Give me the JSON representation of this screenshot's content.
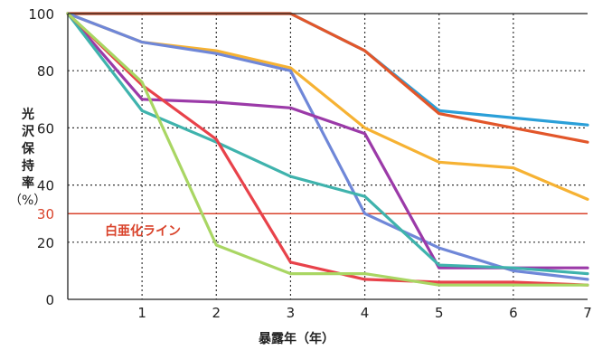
{
  "chart_data": {
    "type": "line",
    "xlabel": "暴露年（年）",
    "ylabel": [
      "光",
      "沢",
      "保",
      "持",
      "率",
      "（%）"
    ],
    "ylim": [
      0,
      100
    ],
    "xlim": [
      0,
      7
    ],
    "x_ticks": [
      1,
      2,
      3,
      4,
      5,
      6,
      7
    ],
    "y_ticks": [
      0,
      20,
      40,
      60,
      80,
      100
    ],
    "grid": "dotted",
    "reference_line": {
      "value": 30,
      "label": "白亜化ライン",
      "tick_label": "30",
      "color": "#d9432b"
    },
    "series": [
      {
        "color": "#2a9fd8",
        "x": [
          0,
          3,
          4,
          5,
          7
        ],
        "y": [
          100,
          100,
          87,
          66,
          61
        ]
      },
      {
        "color": "#e2562a",
        "x": [
          0,
          3,
          4,
          5,
          6,
          7
        ],
        "y": [
          100,
          100,
          87,
          65,
          60,
          55
        ]
      },
      {
        "color": "#f6b233",
        "x": [
          0,
          1,
          2,
          3,
          4,
          5,
          6,
          7
        ],
        "y": [
          100,
          90,
          87,
          81,
          60,
          48,
          46,
          35
        ]
      },
      {
        "color": "#6f87d8",
        "x": [
          0,
          1,
          2,
          3,
          4,
          5,
          6,
          7
        ],
        "y": [
          100,
          90,
          86,
          80,
          30,
          18,
          10,
          7
        ]
      },
      {
        "color": "#9b3aa8",
        "x": [
          0,
          1,
          2,
          3,
          4,
          5,
          6,
          7
        ],
        "y": [
          100,
          70,
          69,
          67,
          58,
          11,
          11,
          11
        ]
      },
      {
        "color": "#3fb3ad",
        "x": [
          0,
          1,
          2,
          3,
          4,
          5,
          6,
          7
        ],
        "y": [
          100,
          66,
          55,
          43,
          36,
          12,
          11,
          9
        ]
      },
      {
        "color": "#e8424a",
        "x": [
          0,
          1,
          2,
          3,
          4,
          5,
          6,
          7
        ],
        "y": [
          100,
          75,
          56,
          13,
          7,
          6,
          6,
          5
        ]
      },
      {
        "color": "#a9d663",
        "x": [
          0,
          1,
          2,
          3,
          4,
          5,
          6,
          7
        ],
        "y": [
          100,
          76,
          19,
          9,
          9,
          5,
          5,
          5
        ]
      }
    ]
  }
}
